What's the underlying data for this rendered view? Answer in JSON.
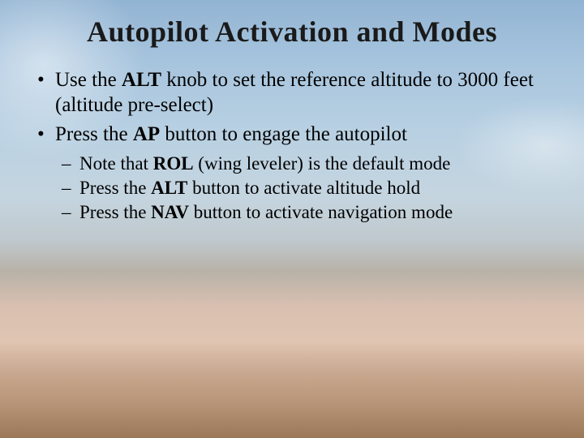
{
  "title": "Autopilot Activation and Modes",
  "bullets": [
    {
      "prefix": "Use the ",
      "bold1": "ALT",
      "rest": " knob to set the reference altitude to 3000 feet (altitude pre-select)"
    },
    {
      "prefix": "Press the ",
      "bold1": "AP",
      "rest": " button to engage the autopilot",
      "sub": [
        {
          "prefix": "Note that ",
          "bold1": "ROL",
          "rest": " (wing leveler) is the default mode"
        },
        {
          "prefix": "Press the ",
          "bold1": "ALT",
          "rest": " button to activate altitude hold"
        },
        {
          "prefix": "Press the ",
          "bold1": "NAV",
          "rest": " button to activate navigation mode"
        }
      ]
    }
  ],
  "colors": {
    "title": "#1a1a1a",
    "text": "#000000",
    "sky_top": "#92b4d3",
    "sky_mid": "#c5d5e0",
    "cloud_warm": "#e0c5b2",
    "ground": "#9a7858"
  },
  "typography": {
    "title_fontsize": 36,
    "body_fontsize": 25,
    "sub_fontsize": 23,
    "font_family": "Times New Roman"
  }
}
